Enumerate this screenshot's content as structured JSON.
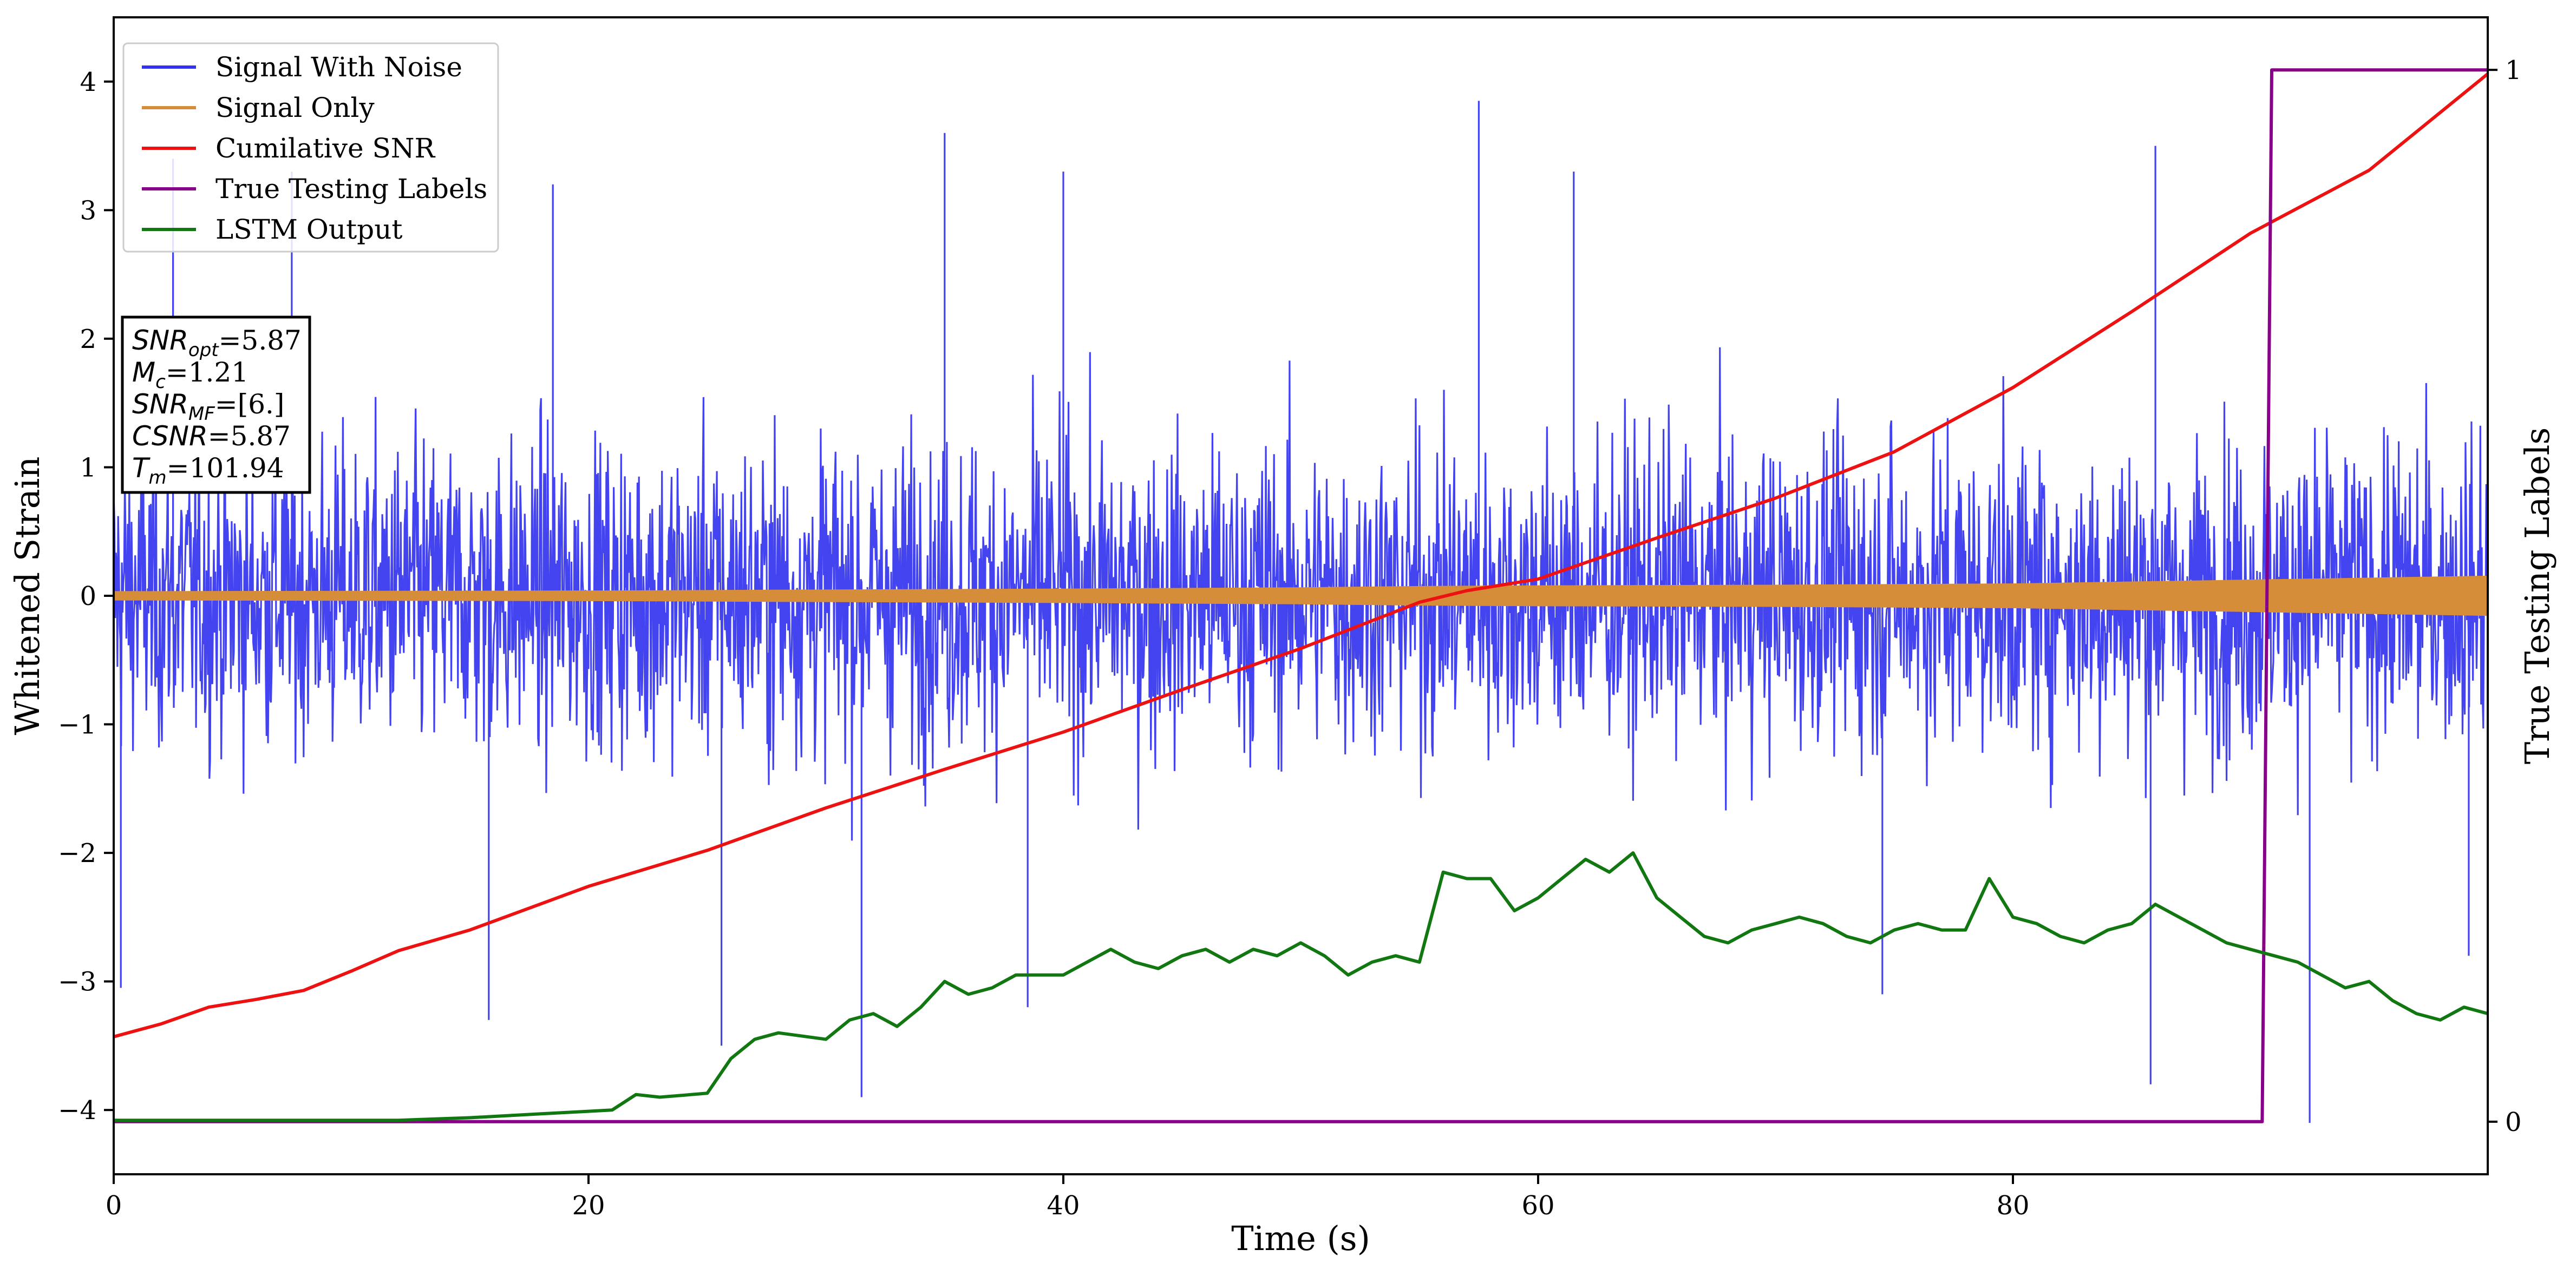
{
  "chart_data": {
    "type": "line",
    "xlabel": "Time (s)",
    "ylabel": "Whitened Strain",
    "y2label": "True Testing Labels",
    "xlim": [
      0,
      100
    ],
    "ylim": [
      -4.5,
      4.5
    ],
    "y2lim": [
      -0.05,
      1.05
    ],
    "x_ticks": [
      0,
      20,
      40,
      60,
      80
    ],
    "y_ticks": [
      -4,
      -3,
      -2,
      -1,
      0,
      1,
      2,
      3,
      4
    ],
    "y2_ticks": [
      0,
      1
    ],
    "grid": false,
    "legend_position": "top-left",
    "series": [
      {
        "name": "Signal With Noise",
        "color": "#3333ee",
        "kind": "noise-band",
        "x_range": [
          0,
          100
        ],
        "envelope_upper": 2.0,
        "envelope_lower": -2.1,
        "spikes_up": [
          [
            2.5,
            3.4
          ],
          [
            7.5,
            3.3
          ],
          [
            18.5,
            3.2
          ],
          [
            35.0,
            3.6
          ],
          [
            40.0,
            3.3
          ],
          [
            57.5,
            3.85
          ],
          [
            61.5,
            3.3
          ],
          [
            86.0,
            3.5
          ]
        ],
        "spikes_down": [
          [
            0.3,
            -3.05
          ],
          [
            15.8,
            -3.3
          ],
          [
            25.6,
            -3.5
          ],
          [
            31.5,
            -3.9
          ],
          [
            38.5,
            -3.2
          ],
          [
            74.5,
            -3.1
          ],
          [
            85.8,
            -3.8
          ],
          [
            92.5,
            -4.1
          ],
          [
            99.2,
            -2.8
          ]
        ]
      },
      {
        "name": "Signal Only",
        "color": "#d68d3a",
        "kind": "amplitude-band",
        "x": [
          0,
          20,
          40,
          50,
          55,
          60,
          70,
          80,
          90,
          100
        ],
        "amplitude": [
          0.03,
          0.035,
          0.05,
          0.06,
          0.07,
          0.075,
          0.08,
          0.09,
          0.12,
          0.15
        ]
      },
      {
        "name": "Cumilative SNR",
        "color": "#ee1111",
        "x": [
          0,
          2,
          4,
          6,
          8,
          10,
          12,
          15,
          20,
          25,
          30,
          35,
          40,
          45,
          50,
          55,
          57,
          60,
          65,
          70,
          75,
          80,
          85,
          90,
          95,
          100
        ],
        "y": [
          -3.43,
          -3.33,
          -3.2,
          -3.14,
          -3.07,
          -2.92,
          -2.76,
          -2.6,
          -2.26,
          -1.98,
          -1.65,
          -1.35,
          -1.06,
          -0.73,
          -0.41,
          -0.05,
          0.04,
          0.13,
          0.45,
          0.76,
          1.12,
          1.62,
          2.21,
          2.82,
          3.31,
          4.06
        ]
      },
      {
        "name": "True Testing Labels",
        "color": "#880088",
        "axis": "right",
        "x": [
          0,
          90.5,
          90.9,
          100
        ],
        "y": [
          0,
          0,
          1,
          1
        ]
      },
      {
        "name": "LSTM Output",
        "color": "#117711",
        "x": [
          0,
          12,
          15,
          18,
          20,
          21,
          22,
          23,
          25,
          26,
          27,
          28,
          30,
          31,
          32,
          33,
          34,
          35,
          36,
          37,
          38,
          40,
          41,
          42,
          43,
          44,
          45,
          46,
          47,
          48,
          49,
          50,
          51,
          52,
          53,
          54,
          55,
          56,
          57,
          58,
          59,
          60,
          61,
          62,
          63,
          64,
          65,
          66,
          67,
          68,
          69,
          70,
          71,
          72,
          73,
          74,
          75,
          76,
          77,
          78,
          79,
          80,
          81,
          82,
          83,
          84,
          85,
          86,
          87,
          88,
          89,
          90,
          91,
          92,
          93,
          94,
          95,
          96,
          97,
          98,
          99,
          100
        ],
        "y": [
          -4.08,
          -4.08,
          -4.06,
          -4.03,
          -4.01,
          -4.0,
          -3.88,
          -3.9,
          -3.87,
          -3.6,
          -3.45,
          -3.4,
          -3.45,
          -3.3,
          -3.25,
          -3.35,
          -3.2,
          -3.0,
          -3.1,
          -3.05,
          -2.95,
          -2.95,
          -2.85,
          -2.75,
          -2.85,
          -2.9,
          -2.8,
          -2.75,
          -2.85,
          -2.75,
          -2.8,
          -2.7,
          -2.8,
          -2.95,
          -2.85,
          -2.8,
          -2.85,
          -2.15,
          -2.2,
          -2.2,
          -2.45,
          -2.35,
          -2.2,
          -2.05,
          -2.15,
          -2.0,
          -2.35,
          -2.5,
          -2.65,
          -2.7,
          -2.6,
          -2.55,
          -2.5,
          -2.55,
          -2.65,
          -2.7,
          -2.6,
          -2.55,
          -2.6,
          -2.6,
          -2.2,
          -2.5,
          -2.55,
          -2.65,
          -2.7,
          -2.6,
          -2.55,
          -2.4,
          -2.5,
          -2.6,
          -2.7,
          -2.75,
          -2.8,
          -2.85,
          -2.95,
          -3.05,
          -3.0,
          -3.15,
          -3.25,
          -3.3,
          -3.2,
          -3.25
        ]
      }
    ],
    "annotation": {
      "lines": [
        {
          "sym": "SNR",
          "sub": "opt",
          "val": "=5.87"
        },
        {
          "sym": "M",
          "sub": "c",
          "val": "=1.21"
        },
        {
          "sym": "SNR",
          "sub": "MF",
          "val": "=[6.]"
        },
        {
          "sym": "CSNR",
          "sub": "",
          "val": "=5.87"
        },
        {
          "sym": "T",
          "sub": "m",
          "val": "=101.94"
        }
      ]
    }
  }
}
